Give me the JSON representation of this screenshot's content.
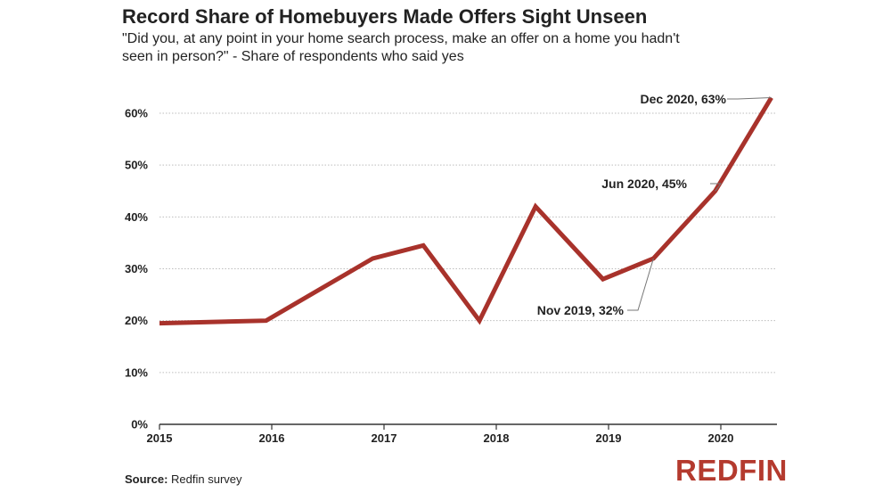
{
  "header": {
    "title": "Record Share of Homebuyers Made Offers Sight Unseen",
    "subtitle": "\"Did you, at any point in your home search process, make an offer on a home you hadn't seen in person?\" - Share of respondents who said yes"
  },
  "footer": {
    "source_label": "Source:",
    "source_text": "Redfin survey",
    "brand": "REDFIN"
  },
  "colors": {
    "line": "#a8322b",
    "grid": "#bdbdbd",
    "brand": "#b43a2e"
  },
  "chart_data": {
    "type": "line",
    "title": "Record Share of Homebuyers Made Offers Sight Unseen",
    "subtitle": "\"Did you, at any point in your home search process, make an offer on a home you hadn't seen in person?\" - Share of respondents who said yes",
    "xlabel": "",
    "ylabel": "",
    "x_ticks": [
      "2015",
      "2016",
      "2017",
      "2018",
      "2019",
      "2020"
    ],
    "y_ticks": [
      "0%",
      "10%",
      "20%",
      "30%",
      "40%",
      "50%",
      "60%"
    ],
    "ylim": [
      0,
      65
    ],
    "grid": true,
    "series": [
      {
        "x": [
          2015.0,
          2015.95,
          2016.9,
          2017.35,
          2017.85,
          2018.35,
          2018.95,
          2019.4,
          2019.95,
          2020.45
        ],
        "values": [
          19.5,
          20,
          32,
          34.5,
          20,
          42,
          28,
          32,
          45,
          63
        ]
      }
    ],
    "annotations": [
      {
        "label": "Nov 2019, 32%",
        "x": 2019.4,
        "y": 32
      },
      {
        "label": "Jun 2020, 45%",
        "x": 2019.95,
        "y": 45
      },
      {
        "label": "Dec 2020, 63%",
        "x": 2020.45,
        "y": 63
      }
    ]
  }
}
